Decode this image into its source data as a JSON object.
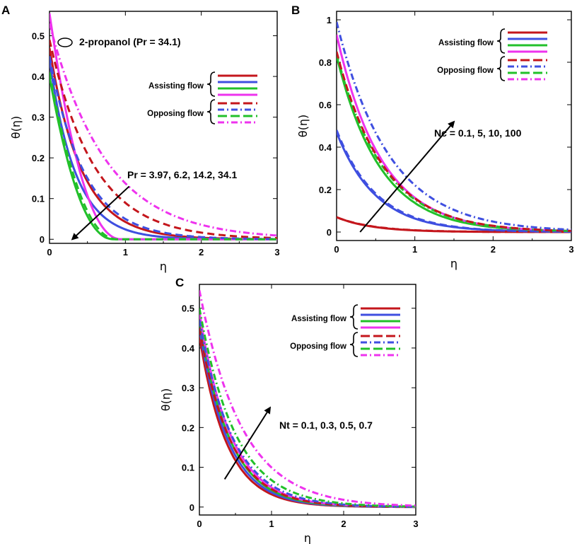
{
  "figure": {
    "colors": {
      "red": "#c4161c",
      "blue": "#3f4fe0",
      "green": "#22c02a",
      "magenta": "#ee33ee"
    },
    "legend_labels": {
      "assisting": "Assisting flow",
      "opposing": "Opposing flow"
    }
  },
  "chart_data": [
    {
      "panel": "A",
      "type": "line",
      "xlabel": "η",
      "ylabel": "θ(η)",
      "xlim": [
        0,
        3
      ],
      "ylim": [
        -0.01,
        0.56
      ],
      "xticks": [
        0,
        1,
        2,
        3
      ],
      "yticks": [
        0,
        0.1,
        0.2,
        0.3,
        0.4,
        0.5
      ],
      "legend": {
        "position": "right",
        "entries": [
          "Assisting flow",
          "Opposing flow"
        ]
      },
      "annotation": {
        "text": "Pr = 3.97, 6.2, 14.2, 34.1",
        "arrow_from": [
          1.05,
          0.13
        ],
        "arrow_to": [
          0.3,
          0.0
        ]
      },
      "note": "2-propanol  (Pr = 34.1)",
      "series": [
        {
          "name": "Assisting, Pr = 3.97",
          "color": "red",
          "dash": "solid",
          "theta0": 0.47,
          "decay": 2.4,
          "shape": "exp"
        },
        {
          "name": "Assisting, Pr = 6.2",
          "color": "blue",
          "dash": "solid",
          "theta0": 0.44,
          "decay": 2.9,
          "shape": "exp"
        },
        {
          "name": "Assisting, Pr = 14.2",
          "color": "green",
          "dash": "solid",
          "theta0": 0.4,
          "cutoff": 0.85,
          "shape": "poly"
        },
        {
          "name": "Assisting, Pr = 34.1",
          "color": "magenta",
          "dash": "solid",
          "theta0": 0.555,
          "cutoff": 0.95,
          "shape": "poly"
        },
        {
          "name": "Opposing, Pr = 3.97",
          "color": "red",
          "dash": "dash",
          "theta0": 0.49,
          "decay": 1.7,
          "shape": "exp"
        },
        {
          "name": "Opposing, Pr = 6.2",
          "color": "blue",
          "dash": "dash",
          "theta0": 0.45,
          "decay": 2.2,
          "shape": "exp"
        },
        {
          "name": "Opposing, Pr = 14.2",
          "color": "green",
          "dash": "dash",
          "theta0": 0.41,
          "cutoff": 0.9,
          "shape": "poly"
        },
        {
          "name": "Opposing, Pr = 34.1",
          "color": "magenta",
          "dash": "dashdot",
          "theta0": 0.53,
          "decay": 1.35,
          "shape": "exp"
        }
      ]
    },
    {
      "panel": "B",
      "type": "line",
      "xlabel": "η",
      "ylabel": "θ(η)",
      "xlim": [
        0,
        3
      ],
      "ylim": [
        -0.04,
        1.04
      ],
      "xticks": [
        0,
        1,
        2,
        3
      ],
      "yticks": [
        0,
        0.2,
        0.4,
        0.6,
        0.8,
        1
      ],
      "legend": {
        "position": "top-right",
        "entries": [
          "Assisting flow",
          "Opposing flow"
        ]
      },
      "annotation": {
        "text": "Nc = 0.1, 5, 10, 100",
        "arrow_from": [
          0.3,
          0.0
        ],
        "arrow_to": [
          1.5,
          0.52
        ]
      },
      "series": [
        {
          "name": "Assisting, Nc = 0.1",
          "color": "red",
          "dash": "solid",
          "theta0": 0.07,
          "decay": 2.2,
          "shape": "exp"
        },
        {
          "name": "Assisting, Nc = 5",
          "color": "blue",
          "dash": "solid",
          "theta0": 0.47,
          "decay": 2.0,
          "shape": "exp"
        },
        {
          "name": "Assisting, Nc = 10",
          "color": "green",
          "dash": "solid",
          "theta0": 0.83,
          "decay": 1.8,
          "shape": "exp"
        },
        {
          "name": "Assisting, Nc = 100",
          "color": "magenta",
          "dash": "solid",
          "theta0": 0.93,
          "decay": 1.75,
          "shape": "exp"
        },
        {
          "name": "Opposing, Nc = 0.1",
          "color": "red",
          "dash": "dash",
          "theta0": 0.07,
          "decay": 2.1,
          "shape": "exp"
        },
        {
          "name": "Opposing, Nc = 5",
          "color": "blue",
          "dash": "dash",
          "theta0": 0.48,
          "decay": 1.95,
          "shape": "exp"
        },
        {
          "name": "Opposing, Nc = 10",
          "color": "green",
          "dash": "dashdot",
          "theta0": 0.84,
          "decay": 1.7,
          "shape": "exp"
        },
        {
          "name": "Opposing, Nc = 100",
          "color": "red",
          "dash": "dash",
          "theta0": 0.85,
          "decay": 1.68,
          "shape": "exp"
        },
        {
          "name": "Opposing, Nc = 100 (blue)",
          "color": "blue",
          "dash": "dashdot",
          "theta0": 0.99,
          "decay": 1.5,
          "shape": "exp"
        }
      ]
    },
    {
      "panel": "C",
      "type": "line",
      "xlabel": "η",
      "ylabel": "θ(η)",
      "xlim": [
        0,
        3
      ],
      "ylim": [
        -0.02,
        0.56
      ],
      "xticks": [
        0,
        1,
        2,
        3
      ],
      "yticks": [
        0,
        0.1,
        0.2,
        0.3,
        0.4,
        0.5
      ],
      "legend": {
        "position": "top-right",
        "entries": [
          "Assisting flow",
          "Opposing flow"
        ]
      },
      "annotation": {
        "text": "Nt = 0.1, 0.3, 0.5, 0.7",
        "arrow_from": [
          0.35,
          0.07
        ],
        "arrow_to": [
          0.98,
          0.25
        ]
      },
      "series": [
        {
          "name": "Assisting, Nt = 0.1",
          "color": "red",
          "dash": "solid",
          "theta0": 0.43,
          "decay": 2.6,
          "shape": "exp"
        },
        {
          "name": "Assisting, Nt = 0.3",
          "color": "blue",
          "dash": "solid",
          "theta0": 0.45,
          "decay": 2.5,
          "shape": "exp"
        },
        {
          "name": "Assisting, Nt = 0.5",
          "color": "green",
          "dash": "solid",
          "theta0": 0.47,
          "decay": 2.4,
          "shape": "exp"
        },
        {
          "name": "Assisting, Nt = 0.7",
          "color": "magenta",
          "dash": "solid",
          "theta0": 0.49,
          "decay": 2.3,
          "shape": "exp"
        },
        {
          "name": "Opposing, Nt = 0.1",
          "color": "red",
          "dash": "dash",
          "theta0": 0.45,
          "decay": 2.3,
          "shape": "exp"
        },
        {
          "name": "Opposing, Nt = 0.3",
          "color": "blue",
          "dash": "dashdot",
          "theta0": 0.47,
          "decay": 2.15,
          "shape": "exp"
        },
        {
          "name": "Opposing, Nt = 0.5",
          "color": "green",
          "dash": "dashdot",
          "theta0": 0.5,
          "decay": 2.0,
          "shape": "exp"
        },
        {
          "name": "Opposing, Nt = 0.7",
          "color": "magenta",
          "dash": "dashdot",
          "theta0": 0.545,
          "decay": 1.7,
          "shape": "exp"
        }
      ]
    }
  ]
}
